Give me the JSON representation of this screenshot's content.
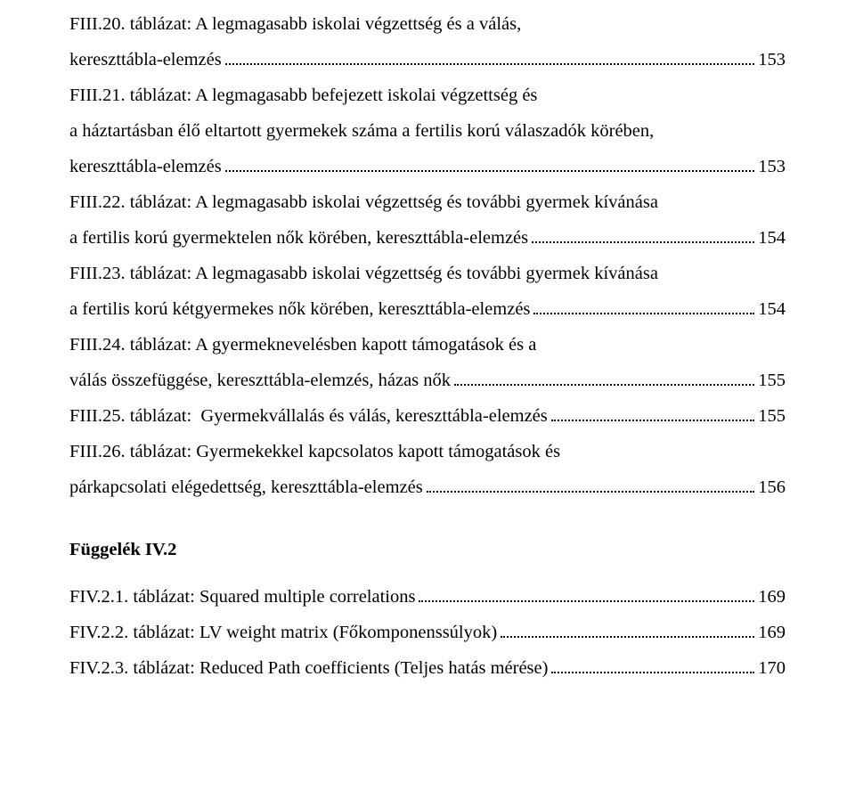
{
  "entries": [
    {
      "lines": [
        "FIII.20. táblázat: A legmagasabb iskolai végzettség és a válás,"
      ],
      "last": "kereszttábla-elemzés",
      "page": "153"
    },
    {
      "lines": [
        "FIII.21. táblázat: A legmagasabb befejezett iskolai végzettség és",
        "a háztartásban élő eltartott gyermekek száma a fertilis korú válaszadók körében,"
      ],
      "last": "kereszttábla-elemzés",
      "page": "153"
    },
    {
      "lines": [
        "FIII.22. táblázat: A legmagasabb iskolai végzettség és további gyermek kívánása"
      ],
      "last": "a fertilis korú gyermektelen nők körében, kereszttábla-elemzés",
      "page": "154"
    },
    {
      "lines": [
        "FIII.23. táblázat: A legmagasabb iskolai végzettség és további gyermek kívánása"
      ],
      "last": "a fertilis korú kétgyermekes nők körében, kereszttábla-elemzés",
      "page": "154"
    },
    {
      "lines": [
        "FIII.24. táblázat:  A gyermeknevelésben kapott támogatások és a"
      ],
      "last": "válás összefüggése, kereszttábla-elemzés, házas nők",
      "page": "155"
    },
    {
      "lines": [],
      "last": "FIII.25. táblázat:  Gyermekvállalás és válás, kereszttábla-elemzés",
      "page": "155"
    },
    {
      "lines": [
        "FIII.26. táblázat:  Gyermekekkel kapcsolatos kapott támogatások és"
      ],
      "last": "párkapcsolati elégedettség, kereszttábla-elemzés",
      "page": "156"
    }
  ],
  "heading": "Függelék IV.2",
  "entries2": [
    {
      "lines": [],
      "last": "FIV.2.1. táblázat: Squared multiple correlations",
      "page": "169"
    },
    {
      "lines": [],
      "last": "FIV.2.2. táblázat: LV weight matrix (Főkomponenssúlyok)",
      "page": "169"
    },
    {
      "lines": [],
      "last": "FIV.2.3. táblázat: Reduced Path coefficients (Teljes hatás mérése)",
      "page": "170"
    }
  ],
  "style": {
    "font_family": "Times New Roman",
    "font_size_pt": 15.5,
    "text_color": "#000000",
    "background_color": "#ffffff",
    "dot_color": "#000000"
  }
}
